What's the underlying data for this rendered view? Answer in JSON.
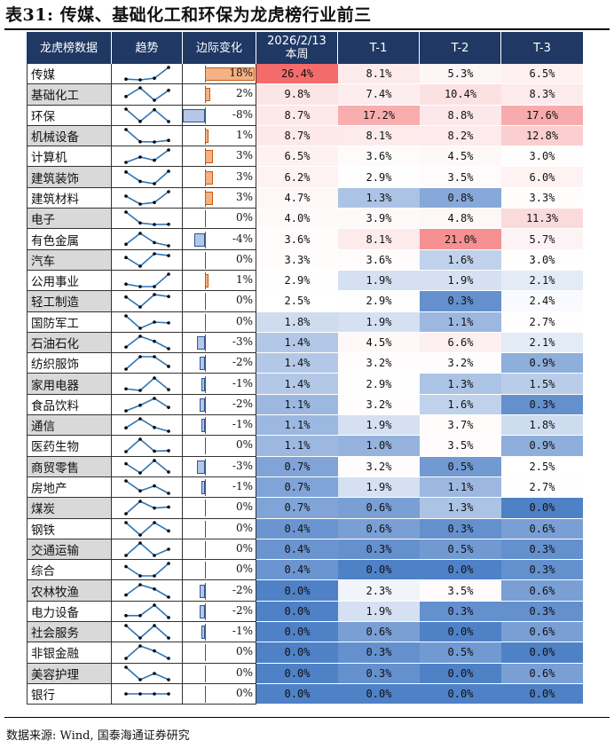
{
  "title": "表31: 传媒、基础化工和环保为龙虎榜行业前三",
  "source": "数据来源: Wind, 国泰海通证券研究",
  "headers": {
    "industry": "龙虎榜数据",
    "trend": "趋势",
    "change": "边际变化",
    "current": "2026/2/13\n本周",
    "t1": "T-1",
    "t2": "T-2",
    "t3": "T-3"
  },
  "colors": {
    "header_bg": "#1f3864",
    "high": "#f46b6b",
    "low": "#4f81c7",
    "bar_positive": "#f4b183",
    "bar_negative": "#b4c7e7",
    "trend_line": "#2e75b6",
    "trend_marker": "#000000"
  },
  "rows": [
    {
      "industry": "传媒",
      "change": "18%",
      "change_value": 18,
      "current": "26.4%",
      "t1": "8.1%",
      "t2": "5.3%",
      "t3": "6.5%"
    },
    {
      "industry": "基础化工",
      "change": "2%",
      "change_value": 2,
      "current": "9.8%",
      "t1": "7.4%",
      "t2": "10.4%",
      "t3": "8.3%"
    },
    {
      "industry": "环保",
      "change": "-8%",
      "change_value": -8,
      "current": "8.7%",
      "t1": "17.2%",
      "t2": "8.8%",
      "t3": "17.6%"
    },
    {
      "industry": "机械设备",
      "change": "1%",
      "change_value": 1,
      "current": "8.7%",
      "t1": "8.1%",
      "t2": "8.2%",
      "t3": "12.8%"
    },
    {
      "industry": "计算机",
      "change": "3%",
      "change_value": 3,
      "current": "6.5%",
      "t1": "3.6%",
      "t2": "4.5%",
      "t3": "3.0%"
    },
    {
      "industry": "建筑装饰",
      "change": "3%",
      "change_value": 3,
      "current": "6.2%",
      "t1": "2.9%",
      "t2": "3.5%",
      "t3": "6.0%"
    },
    {
      "industry": "建筑材料",
      "change": "3%",
      "change_value": 3,
      "current": "4.7%",
      "t1": "1.3%",
      "t2": "0.8%",
      "t3": "3.3%"
    },
    {
      "industry": "电子",
      "change": "0%",
      "change_value": 0,
      "current": "4.0%",
      "t1": "3.9%",
      "t2": "4.8%",
      "t3": "11.3%"
    },
    {
      "industry": "有色金属",
      "change": "-4%",
      "change_value": -4,
      "current": "3.6%",
      "t1": "8.1%",
      "t2": "21.0%",
      "t3": "5.7%"
    },
    {
      "industry": "汽车",
      "change": "0%",
      "change_value": 0,
      "current": "3.3%",
      "t1": "3.6%",
      "t2": "1.6%",
      "t3": "3.0%"
    },
    {
      "industry": "公用事业",
      "change": "1%",
      "change_value": 1,
      "current": "2.9%",
      "t1": "1.9%",
      "t2": "1.9%",
      "t3": "2.1%"
    },
    {
      "industry": "轻工制造",
      "change": "0%",
      "change_value": 0,
      "current": "2.5%",
      "t1": "2.9%",
      "t2": "0.3%",
      "t3": "2.4%"
    },
    {
      "industry": "国防军工",
      "change": "0%",
      "change_value": 0,
      "current": "1.8%",
      "t1": "1.9%",
      "t2": "1.1%",
      "t3": "2.7%"
    },
    {
      "industry": "石油石化",
      "change": "-3%",
      "change_value": -3,
      "current": "1.4%",
      "t1": "4.5%",
      "t2": "6.6%",
      "t3": "2.1%"
    },
    {
      "industry": "纺织服饰",
      "change": "-2%",
      "change_value": -2,
      "current": "1.4%",
      "t1": "3.2%",
      "t2": "3.2%",
      "t3": "0.9%"
    },
    {
      "industry": "家用电器",
      "change": "-1%",
      "change_value": -1,
      "current": "1.4%",
      "t1": "2.9%",
      "t2": "1.3%",
      "t3": "1.5%"
    },
    {
      "industry": "食品饮料",
      "change": "-2%",
      "change_value": -2,
      "current": "1.1%",
      "t1": "3.2%",
      "t2": "1.6%",
      "t3": "0.3%"
    },
    {
      "industry": "通信",
      "change": "-1%",
      "change_value": -1,
      "current": "1.1%",
      "t1": "1.9%",
      "t2": "3.7%",
      "t3": "1.8%"
    },
    {
      "industry": "医药生物",
      "change": "0%",
      "change_value": 0,
      "current": "1.1%",
      "t1": "1.0%",
      "t2": "3.5%",
      "t3": "0.9%"
    },
    {
      "industry": "商贸零售",
      "change": "-3%",
      "change_value": -3,
      "current": "0.7%",
      "t1": "3.2%",
      "t2": "0.5%",
      "t3": "2.5%"
    },
    {
      "industry": "房地产",
      "change": "-1%",
      "change_value": -1,
      "current": "0.7%",
      "t1": "1.9%",
      "t2": "1.1%",
      "t3": "2.7%"
    },
    {
      "industry": "煤炭",
      "change": "0%",
      "change_value": 0,
      "current": "0.7%",
      "t1": "0.6%",
      "t2": "1.3%",
      "t3": "0.0%"
    },
    {
      "industry": "钢铁",
      "change": "0%",
      "change_value": 0,
      "current": "0.4%",
      "t1": "0.6%",
      "t2": "0.3%",
      "t3": "0.6%"
    },
    {
      "industry": "交通运输",
      "change": "0%",
      "change_value": 0,
      "current": "0.4%",
      "t1": "0.3%",
      "t2": "0.5%",
      "t3": "0.3%"
    },
    {
      "industry": "综合",
      "change": "0%",
      "change_value": 0,
      "current": "0.4%",
      "t1": "0.0%",
      "t2": "0.0%",
      "t3": "0.3%"
    },
    {
      "industry": "农林牧渔",
      "change": "-2%",
      "change_value": -2,
      "current": "0.0%",
      "t1": "2.3%",
      "t2": "3.5%",
      "t3": "0.6%"
    },
    {
      "industry": "电力设备",
      "change": "-2%",
      "change_value": -2,
      "current": "0.0%",
      "t1": "1.9%",
      "t2": "0.3%",
      "t3": "0.3%"
    },
    {
      "industry": "社会服务",
      "change": "-1%",
      "change_value": -1,
      "current": "0.0%",
      "t1": "0.6%",
      "t2": "0.0%",
      "t3": "0.6%"
    },
    {
      "industry": "非银金融",
      "change": "0%",
      "change_value": 0,
      "current": "0.0%",
      "t1": "0.3%",
      "t2": "0.5%",
      "t3": "0.0%"
    },
    {
      "industry": "美容护理",
      "change": "0%",
      "change_value": 0,
      "current": "0.0%",
      "t1": "0.3%",
      "t2": "0.0%",
      "t3": "0.6%"
    },
    {
      "industry": "银行",
      "change": "0%",
      "change_value": 0,
      "current": "0.0%",
      "t1": "0.0%",
      "t2": "0.0%",
      "t3": "0.0%"
    }
  ]
}
